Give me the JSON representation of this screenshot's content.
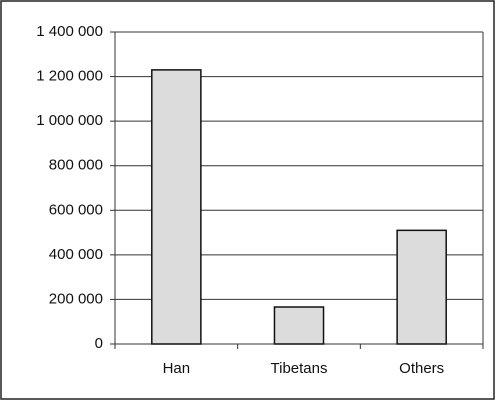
{
  "chart_data": {
    "type": "bar",
    "categories": [
      "Han",
      "Tibetans",
      "Others"
    ],
    "values": [
      1230000,
      166000,
      510000
    ],
    "color": "#dcdcdc",
    "ylim": [
      0,
      1400000
    ],
    "yticks": [
      0,
      {
        "value": 200000,
        "label": "200 000"
      },
      {
        "value": 400000,
        "label": "400 000"
      },
      {
        "value": 600000,
        "label": "600 000"
      },
      {
        "value": 800000,
        "label": "800 000"
      },
      {
        "value": 1000000,
        "label": "1 000 000"
      },
      {
        "value": 1200000,
        "label": "1 200 000"
      },
      {
        "value": 1400000,
        "label": "1 400 000"
      }
    ],
    "grid": true
  }
}
